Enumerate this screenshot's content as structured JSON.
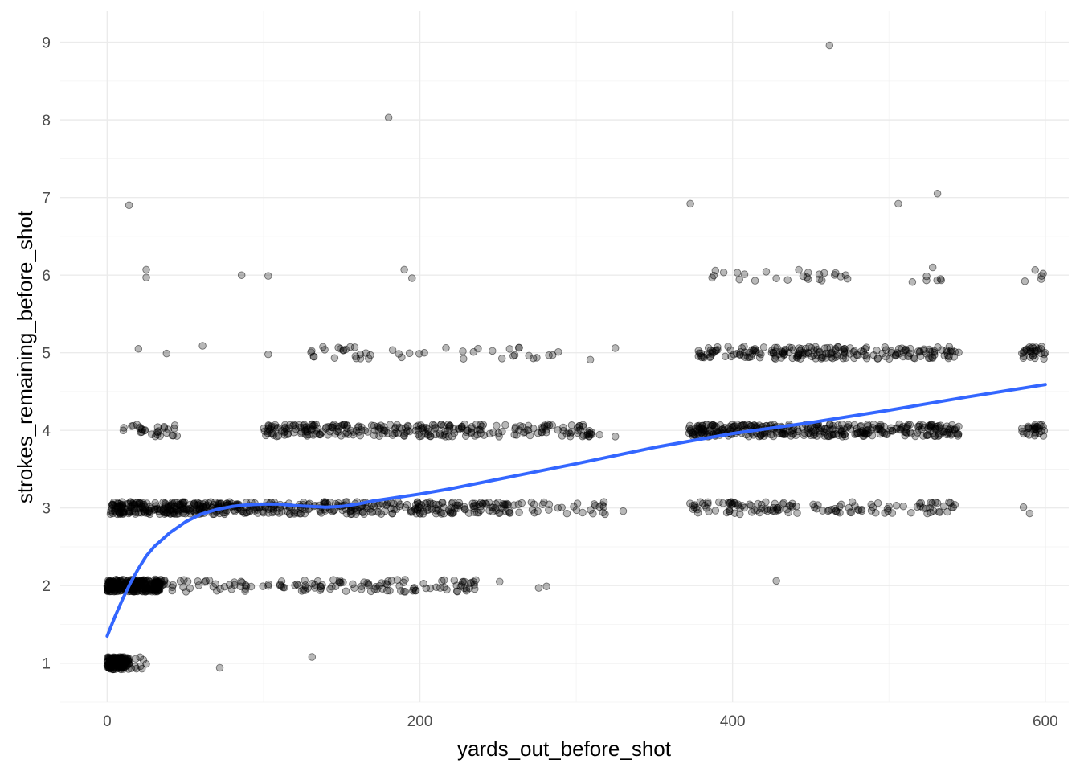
{
  "chart_data": {
    "type": "scatter",
    "title": "",
    "xlabel": "yards_out_before_shot",
    "ylabel": "strokes_remaining_before_shot",
    "xlim": [
      -30,
      615
    ],
    "ylim": [
      0.5,
      9.4
    ],
    "x_ticks": [
      0,
      200,
      400,
      600
    ],
    "y_ticks": [
      1,
      2,
      3,
      4,
      5,
      6,
      7,
      8,
      9
    ],
    "x_tick_labels": [
      "0",
      "200",
      "400",
      "600"
    ],
    "y_tick_labels": [
      "1",
      "2",
      "3",
      "4",
      "5",
      "6",
      "7",
      "8",
      "9"
    ],
    "grid": true,
    "legend": "none",
    "colors": {
      "points": "#000000",
      "smooth_line": "#3366FF",
      "grid": "#EBEBEB"
    },
    "point_alpha": 0.3,
    "clusters": [
      {
        "stroke": 1,
        "x_range": [
          0,
          14
        ],
        "count": 170
      },
      {
        "stroke": 1,
        "x_range": [
          14,
          26
        ],
        "count": 10
      },
      {
        "stroke": 2,
        "x_range": [
          0,
          35
        ],
        "count": 300
      },
      {
        "stroke": 2,
        "x_range": [
          35,
          120
        ],
        "count": 45
      },
      {
        "stroke": 2,
        "x_range": [
          120,
          240
        ],
        "count": 90
      },
      {
        "stroke": 3,
        "x_range": [
          2,
          60
        ],
        "count": 200
      },
      {
        "stroke": 3,
        "x_range": [
          60,
          260
        ],
        "count": 330
      },
      {
        "stroke": 3,
        "x_range": [
          260,
          320
        ],
        "count": 30
      },
      {
        "stroke": 3,
        "x_range": [
          372,
          430
        ],
        "count": 60
      },
      {
        "stroke": 3,
        "x_range": [
          430,
          545
        ],
        "count": 70
      },
      {
        "stroke": 4,
        "x_range": [
          10,
          45
        ],
        "count": 30
      },
      {
        "stroke": 4,
        "x_range": [
          100,
          315
        ],
        "count": 280
      },
      {
        "stroke": 4,
        "x_range": [
          372,
          545
        ],
        "count": 360
      },
      {
        "stroke": 4,
        "x_range": [
          585,
          600
        ],
        "count": 30
      },
      {
        "stroke": 5,
        "x_range": [
          130,
          290
        ],
        "count": 45
      },
      {
        "stroke": 5,
        "x_range": [
          378,
          420
        ],
        "count": 50
      },
      {
        "stroke": 5,
        "x_range": [
          425,
          545
        ],
        "count": 160
      },
      {
        "stroke": 5,
        "x_range": [
          585,
          600
        ],
        "count": 30
      },
      {
        "stroke": 6,
        "x_range": [
          385,
          480
        ],
        "count": 25
      },
      {
        "stroke": 6,
        "x_range": [
          520,
          535
        ],
        "count": 4
      },
      {
        "stroke": 6,
        "x_range": [
          585,
          600
        ],
        "count": 5
      }
    ],
    "outliers": [
      {
        "x": 14,
        "y": 6.9
      },
      {
        "x": 25,
        "y": 6.07
      },
      {
        "x": 25,
        "y": 5.97
      },
      {
        "x": 20,
        "y": 5.05
      },
      {
        "x": 38,
        "y": 4.99
      },
      {
        "x": 61,
        "y": 5.09
      },
      {
        "x": 103,
        "y": 4.98
      },
      {
        "x": 86,
        "y": 6.0
      },
      {
        "x": 103,
        "y": 5.99
      },
      {
        "x": 190,
        "y": 6.07
      },
      {
        "x": 195,
        "y": 5.96
      },
      {
        "x": 180,
        "y": 8.03
      },
      {
        "x": 72,
        "y": 0.94
      },
      {
        "x": 131,
        "y": 1.08
      },
      {
        "x": 373,
        "y": 6.92
      },
      {
        "x": 462,
        "y": 8.96
      },
      {
        "x": 506,
        "y": 6.92
      },
      {
        "x": 531,
        "y": 7.05
      },
      {
        "x": 428,
        "y": 2.06
      },
      {
        "x": 330,
        "y": 2.96
      },
      {
        "x": 325,
        "y": 3.92
      },
      {
        "x": 325,
        "y": 5.06
      },
      {
        "x": 309,
        "y": 4.91
      },
      {
        "x": 276,
        "y": 1.97
      },
      {
        "x": 281,
        "y": 1.99
      },
      {
        "x": 251,
        "y": 2.05
      },
      {
        "x": 515,
        "y": 5.91
      },
      {
        "x": 590,
        "y": 2.93
      },
      {
        "x": 586,
        "y": 3.01
      },
      {
        "x": 528,
        "y": 6.1
      },
      {
        "x": 533,
        "y": 5.95
      }
    ],
    "smooth_line": {
      "x": [
        0,
        5,
        10,
        15,
        20,
        25,
        30,
        40,
        50,
        60,
        70,
        80,
        90,
        100,
        110,
        120,
        130,
        140,
        150,
        160,
        170,
        180,
        200,
        220,
        250,
        300,
        350,
        400,
        450,
        500,
        550,
        600
      ],
      "y": [
        1.35,
        1.6,
        1.83,
        2.04,
        2.22,
        2.38,
        2.5,
        2.68,
        2.82,
        2.92,
        2.98,
        3.02,
        3.04,
        3.05,
        3.05,
        3.03,
        3.02,
        3.01,
        3.02,
        3.05,
        3.09,
        3.12,
        3.18,
        3.25,
        3.37,
        3.57,
        3.78,
        3.96,
        4.1,
        4.26,
        4.43,
        4.59
      ]
    }
  }
}
